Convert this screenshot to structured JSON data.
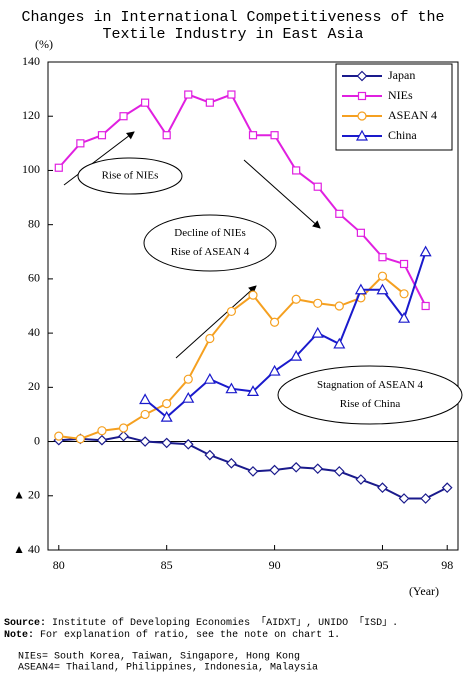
{
  "chart_data": {
    "type": "line",
    "title": [
      "Changes in International Competitiveness of the",
      "Textile Industry in East Asia"
    ],
    "y_label": "(%)",
    "x_label": "(Year)",
    "x": [
      80,
      81,
      82,
      83,
      84,
      85,
      86,
      87,
      88,
      89,
      90,
      91,
      92,
      93,
      94,
      95,
      96,
      97,
      98
    ],
    "xlim": [
      79.5,
      98.5
    ],
    "xticks": [
      80,
      85,
      90,
      95,
      98
    ],
    "ylim": [
      -40,
      140
    ],
    "yticks": [
      140,
      120,
      100,
      80,
      60,
      40,
      20,
      0,
      {
        "value": -20,
        "label": "▲ 20"
      },
      {
        "value": -40,
        "label": "▲ 40"
      }
    ],
    "grid": false,
    "legend": "upper right",
    "series": [
      {
        "name": "Japan",
        "color": "#1a1a8c",
        "marker": "diamond",
        "values": [
          0.5,
          1,
          0.5,
          2,
          0,
          -0.5,
          -1,
          -5,
          -8,
          -11,
          -10.5,
          -9.5,
          -10,
          -11,
          -14,
          -17,
          -21,
          -21,
          -17
        ]
      },
      {
        "name": "NIEs",
        "color": "#e020e0",
        "marker": "square",
        "values": [
          101,
          110,
          113,
          120,
          125,
          113,
          128,
          125,
          128,
          113,
          113,
          100,
          94,
          84,
          77,
          68,
          65.5,
          50,
          null
        ]
      },
      {
        "name": "ASEAN 4",
        "color": "#f5a020",
        "marker": "circle",
        "values": [
          2,
          1,
          4,
          5,
          10,
          14,
          23,
          38,
          48,
          54,
          44,
          52.5,
          51,
          50,
          53,
          61,
          54.5,
          null,
          null
        ]
      },
      {
        "name": "China",
        "color": "#1a1acc",
        "marker": "triangle",
        "values": [
          null,
          null,
          null,
          null,
          15.5,
          9,
          16,
          23,
          19.5,
          18.5,
          26,
          31.5,
          40,
          36,
          56,
          56,
          45.5,
          70,
          null
        ]
      }
    ],
    "annotations": [
      {
        "lines": [
          "Rise of NIEs"
        ]
      },
      {
        "lines": [
          "Decline of NIEs",
          "Rise of ASEAN 4"
        ]
      },
      {
        "lines": [
          "Stagnation of ASEAN 4",
          "Rise of China"
        ]
      }
    ],
    "footnotes": {
      "source": {
        "label": "Source:",
        "text": "Institute of Developing Economies 「AIDXT」, UNIDO 「ISD」."
      },
      "note": {
        "label": "Note:",
        "text": "For explanation of ratio, see the note on chart 1."
      },
      "definitions": [
        "NIEs= South Korea, Taiwan, Singapore, Hong Kong",
        "ASEAN4= Thailand, Philippines, Indonesia, Malaysia"
      ]
    }
  }
}
